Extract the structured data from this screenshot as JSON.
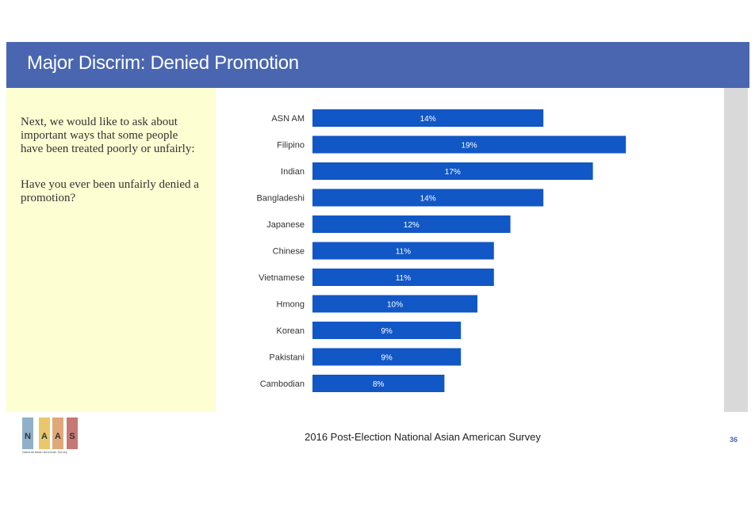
{
  "title": "Major Discrim: Denied Promotion",
  "question": {
    "intro": "Next, we would like to ask about important ways that some people have been treated poorly or unfairly:",
    "text": "Have you ever been unfairly denied a promotion?"
  },
  "footer": {
    "source": "2016 Post-Election National Asian American Survey",
    "page": "36"
  },
  "logo": {
    "letters": [
      "N",
      "A",
      "A",
      "S"
    ],
    "colors": [
      "#8fb0c8",
      "#e8c86a",
      "#e0a878",
      "#c87872"
    ],
    "subtitle": "National Asian American Survey"
  },
  "colors": {
    "header": "#4a66b0",
    "bar": "#1257c6",
    "panel": "#fefed3"
  },
  "chart_data": {
    "type": "bar",
    "orientation": "horizontal",
    "categories": [
      "ASN AM",
      "Filipino",
      "Indian",
      "Bangladeshi",
      "Japanese",
      "Chinese",
      "Vietnamese",
      "Hmong",
      "Korean",
      "Pakistani",
      "Cambodian"
    ],
    "values": [
      14,
      19,
      17,
      14,
      12,
      11,
      11,
      10,
      9,
      9,
      8
    ],
    "labels": [
      "14%",
      "19%",
      "17%",
      "14%",
      "12%",
      "11%",
      "11%",
      "10%",
      "9%",
      "9%",
      "8%"
    ],
    "xlim": [
      0,
      20
    ],
    "grid": false,
    "legend": "none"
  }
}
